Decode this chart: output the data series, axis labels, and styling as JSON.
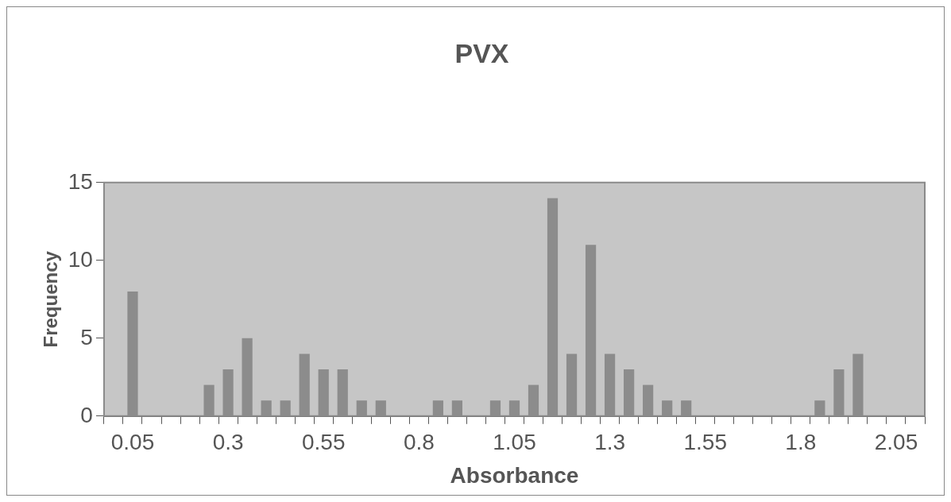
{
  "chart_data": {
    "type": "bar",
    "title": "PVX",
    "xlabel": "Absorbance",
    "ylabel": "Frequency",
    "categories": [
      null,
      "0.05",
      null,
      null,
      null,
      null,
      "0.3",
      null,
      null,
      null,
      null,
      "0.55",
      null,
      null,
      null,
      null,
      "0.8",
      null,
      null,
      null,
      null,
      "1.05",
      null,
      null,
      null,
      null,
      "1.3",
      null,
      null,
      null,
      null,
      "1.55",
      null,
      null,
      null,
      null,
      "1.8",
      null,
      null,
      null,
      null,
      "2.05",
      null
    ],
    "values": [
      0,
      8,
      0,
      0,
      0,
      2,
      3,
      5,
      1,
      1,
      4,
      3,
      3,
      1,
      1,
      0,
      0,
      1,
      1,
      0,
      1,
      1,
      2,
      14,
      4,
      11,
      4,
      3,
      2,
      1,
      1,
      0,
      0,
      0,
      0,
      0,
      0,
      1,
      3,
      4,
      0,
      0,
      0
    ],
    "color": "#8c8c8c",
    "ylim": [
      0,
      15
    ],
    "yticks": [
      0,
      5,
      10,
      15
    ]
  }
}
